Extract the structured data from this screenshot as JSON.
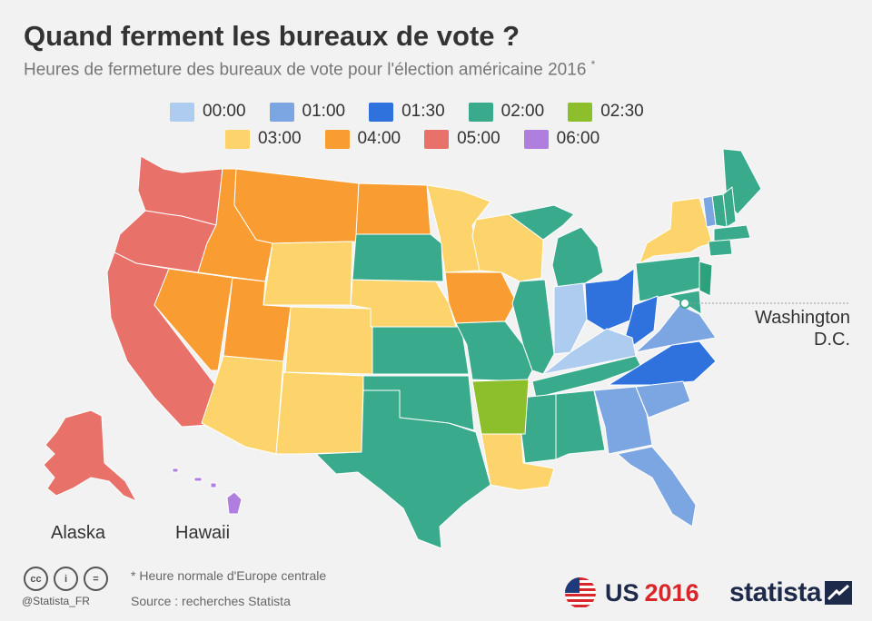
{
  "title": "Quand ferment les bureaux de vote ?",
  "subtitle": "Heures de fermeture des bureaux de vote pour l'élection américaine 2016",
  "subtitle_mark": "*",
  "legend": [
    {
      "label": "00:00",
      "color": "#aecbf0"
    },
    {
      "label": "01:00",
      "color": "#7ba6e2"
    },
    {
      "label": "01:30",
      "color": "#2f72de"
    },
    {
      "label": "02:00",
      "color": "#3aaa8c"
    },
    {
      "label": "02:30",
      "color": "#8cbf2b"
    },
    {
      "label": "03:00",
      "color": "#fdd46c"
    },
    {
      "label": "04:00",
      "color": "#f99d32"
    },
    {
      "label": "05:00",
      "color": "#e8726a"
    },
    {
      "label": "06:00",
      "color": "#b07ede"
    }
  ],
  "dc_label_line1": "Washington",
  "dc_label_line2": "D.C.",
  "alaska_label": "Alaska",
  "hawaii_label": "Hawaii",
  "footnote": "* Heure normale d'Europe centrale",
  "source": "Source : recherches Statista",
  "handle": "@Statista_FR",
  "cc_icons": [
    "cc-icon",
    "person-icon",
    "equals-icon"
  ],
  "us_label": "US",
  "us_year": "2016",
  "brand": "statista"
}
